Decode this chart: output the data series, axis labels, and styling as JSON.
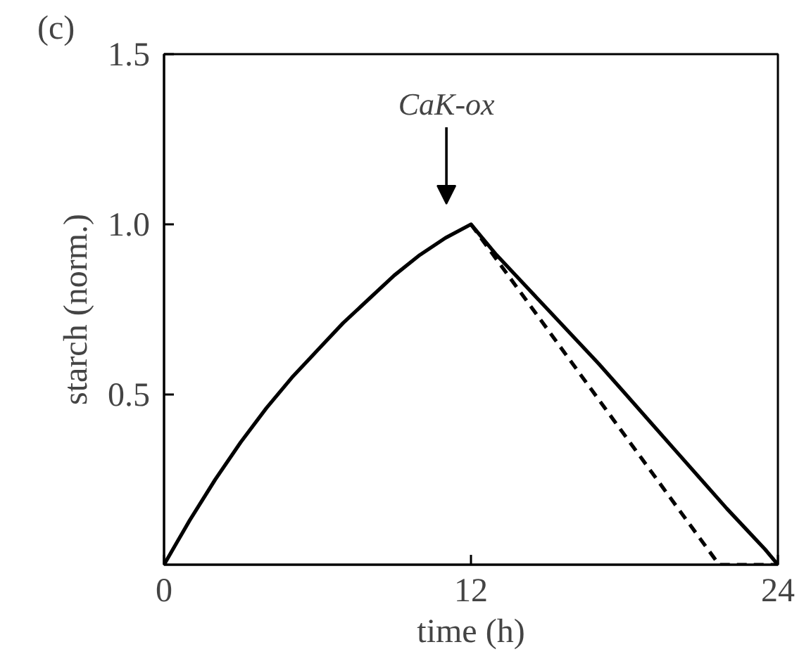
{
  "chart_data": {
    "type": "line",
    "title": "(c)",
    "xlabel": "time (h)",
    "ylabel": "starch (norm.)",
    "xlim": [
      0,
      24
    ],
    "ylim": [
      0,
      1.5
    ],
    "xticks": [
      0,
      12,
      24
    ],
    "yticks": [
      0.5,
      {
        "value": 1,
        "label": "1.0"
      },
      1.5
    ],
    "grid": false,
    "series": [
      {
        "color": "#000000",
        "line_style": "solid",
        "x": [
          0,
          1,
          2,
          3,
          4,
          5,
          6,
          7,
          8,
          9,
          10,
          11,
          12,
          13,
          14,
          15,
          16,
          17,
          18,
          19,
          20,
          21,
          22,
          23,
          23.5,
          24
        ],
        "values": [
          0,
          0.13,
          0.25,
          0.36,
          0.46,
          0.55,
          0.63,
          0.71,
          0.78,
          0.85,
          0.91,
          0.96,
          1.0,
          0.91,
          0.83,
          0.75,
          0.67,
          0.59,
          0.505,
          0.42,
          0.335,
          0.25,
          0.165,
          0.085,
          0.045,
          0
        ]
      },
      {
        "color": "#000000",
        "line_style": "dashed",
        "x": [
          12,
          21.7,
          24
        ],
        "values": [
          1.0,
          0,
          0
        ]
      }
    ],
    "annotations": [
      "CaK-ox"
    ]
  }
}
